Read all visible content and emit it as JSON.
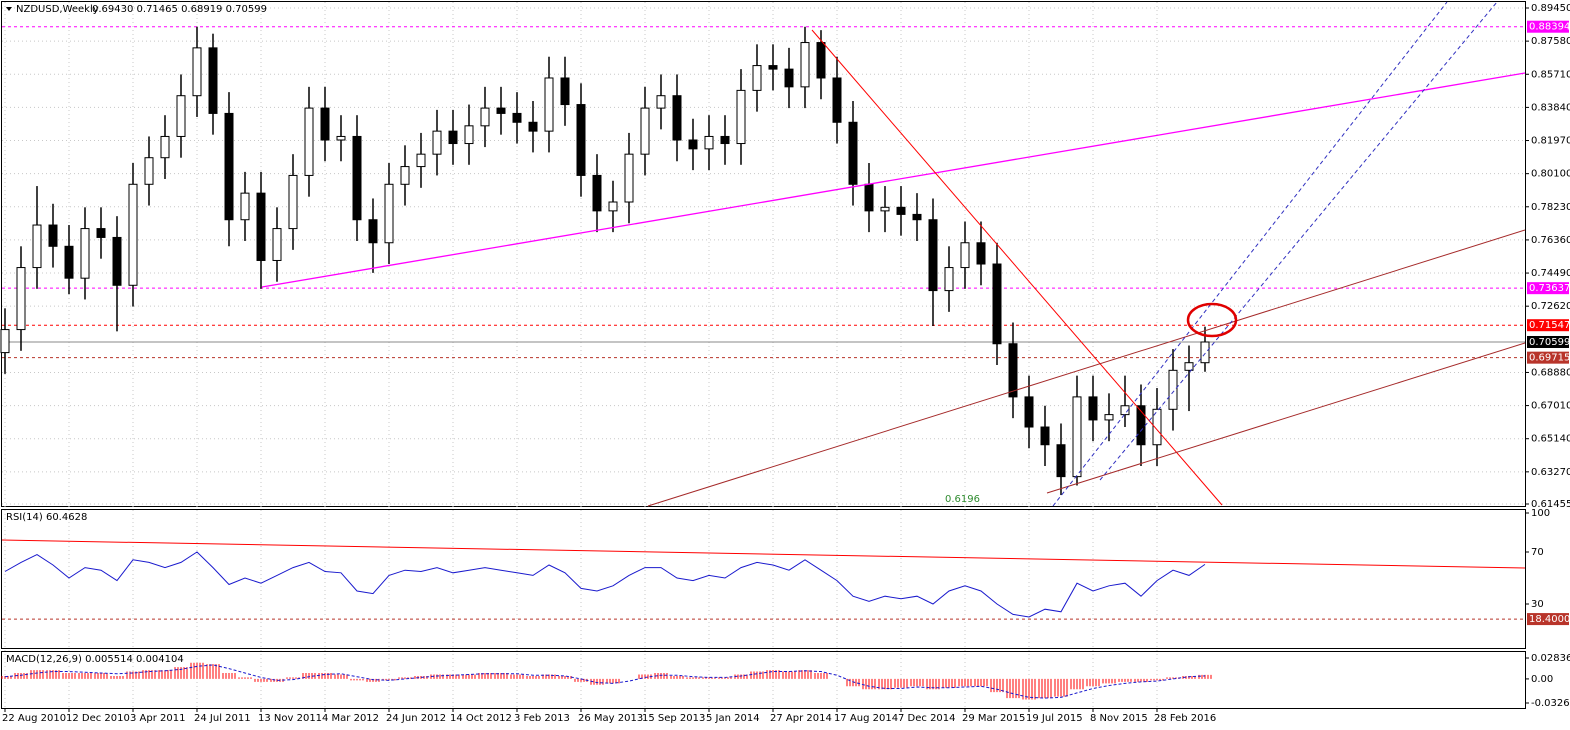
{
  "chart_data": [
    {
      "type": "candlestick",
      "title": "NZDUSD,Weekly",
      "subtitle": "0.69430 0.71465 0.68919 0.70599",
      "open": [
        0.7,
        0.713,
        0.748,
        0.772,
        0.76,
        0.742,
        0.77,
        0.765,
        0.738,
        0.795,
        0.81,
        0.822,
        0.845,
        0.872,
        0.835,
        0.775,
        0.79,
        0.752,
        0.77,
        0.8,
        0.838,
        0.82,
        0.822,
        0.775,
        0.762,
        0.795,
        0.805,
        0.812,
        0.825,
        0.818,
        0.828,
        0.838,
        0.835,
        0.83,
        0.825,
        0.855,
        0.84,
        0.8,
        0.78,
        0.785,
        0.812,
        0.838,
        0.845,
        0.82,
        0.815,
        0.822,
        0.818,
        0.848,
        0.862,
        0.86,
        0.85,
        0.875,
        0.855,
        0.83,
        0.795,
        0.78,
        0.782,
        0.778,
        0.775,
        0.735,
        0.748,
        0.762,
        0.75,
        0.705,
        0.675,
        0.658,
        0.648,
        0.63,
        0.675,
        0.662,
        0.665,
        0.67,
        0.648,
        0.668,
        0.69,
        0.6943
      ],
      "high": [
        0.725,
        0.76,
        0.794,
        0.784,
        0.772,
        0.782,
        0.782,
        0.777,
        0.807,
        0.822,
        0.834,
        0.857,
        0.8839,
        0.88,
        0.847,
        0.802,
        0.802,
        0.782,
        0.812,
        0.85,
        0.85,
        0.834,
        0.834,
        0.787,
        0.807,
        0.817,
        0.824,
        0.837,
        0.837,
        0.84,
        0.85,
        0.85,
        0.847,
        0.842,
        0.867,
        0.867,
        0.852,
        0.812,
        0.797,
        0.824,
        0.85,
        0.857,
        0.857,
        0.832,
        0.834,
        0.834,
        0.86,
        0.874,
        0.874,
        0.872,
        0.8839,
        0.882,
        0.867,
        0.842,
        0.807,
        0.794,
        0.794,
        0.79,
        0.787,
        0.76,
        0.774,
        0.774,
        0.762,
        0.717,
        0.687,
        0.67,
        0.66,
        0.687,
        0.687,
        0.677,
        0.687,
        0.682,
        0.68,
        0.702,
        0.704,
        0.71465
      ],
      "low": [
        0.688,
        0.701,
        0.736,
        0.748,
        0.733,
        0.73,
        0.753,
        0.712,
        0.726,
        0.783,
        0.798,
        0.81,
        0.833,
        0.823,
        0.76,
        0.763,
        0.736,
        0.74,
        0.758,
        0.788,
        0.808,
        0.808,
        0.763,
        0.745,
        0.75,
        0.783,
        0.793,
        0.8,
        0.806,
        0.806,
        0.816,
        0.823,
        0.818,
        0.813,
        0.813,
        0.828,
        0.788,
        0.768,
        0.768,
        0.773,
        0.8,
        0.826,
        0.808,
        0.803,
        0.803,
        0.806,
        0.806,
        0.836,
        0.848,
        0.838,
        0.838,
        0.843,
        0.818,
        0.783,
        0.768,
        0.768,
        0.766,
        0.763,
        0.715,
        0.723,
        0.736,
        0.738,
        0.693,
        0.663,
        0.646,
        0.636,
        0.6196,
        0.625,
        0.65,
        0.65,
        0.658,
        0.636,
        0.636,
        0.656,
        0.667,
        0.68919
      ],
      "close": [
        0.713,
        0.748,
        0.772,
        0.76,
        0.742,
        0.77,
        0.765,
        0.738,
        0.795,
        0.81,
        0.822,
        0.845,
        0.872,
        0.835,
        0.775,
        0.79,
        0.752,
        0.77,
        0.8,
        0.838,
        0.82,
        0.822,
        0.775,
        0.762,
        0.795,
        0.805,
        0.812,
        0.825,
        0.818,
        0.828,
        0.838,
        0.835,
        0.83,
        0.825,
        0.855,
        0.84,
        0.8,
        0.78,
        0.785,
        0.812,
        0.838,
        0.845,
        0.82,
        0.815,
        0.822,
        0.818,
        0.848,
        0.862,
        0.86,
        0.85,
        0.875,
        0.855,
        0.83,
        0.795,
        0.78,
        0.782,
        0.778,
        0.775,
        0.735,
        0.748,
        0.762,
        0.75,
        0.705,
        0.675,
        0.658,
        0.648,
        0.63,
        0.675,
        0.662,
        0.665,
        0.67,
        0.648,
        0.668,
        0.69,
        0.6943,
        0.70599
      ],
      "color": "#000000",
      "ylim": [
        0.61455,
        0.8945
      ],
      "yticks": [
        {
          "value": 0.8945,
          "label": "0.89450"
        },
        {
          "value": 0.8758,
          "label": "0.87580"
        },
        {
          "value": 0.8571,
          "label": "0.85710"
        },
        {
          "value": 0.8384,
          "label": "0.83840"
        },
        {
          "value": 0.8197,
          "label": "0.81970"
        },
        {
          "value": 0.801,
          "label": "0.80100"
        },
        {
          "value": 0.7823,
          "label": "0.78230"
        },
        {
          "value": 0.7636,
          "label": "0.76360"
        },
        {
          "value": 0.7449,
          "label": "0.74490"
        },
        {
          "value": 0.7262,
          "label": "0.72620"
        },
        {
          "value": 0.6888,
          "label": "0.68880"
        },
        {
          "value": 0.6701,
          "label": "0.67010"
        },
        {
          "value": 0.6514,
          "label": "0.65140"
        },
        {
          "value": 0.6327,
          "label": "0.63270"
        },
        {
          "value": 0.61455,
          "label": "0.61455"
        }
      ],
      "levels": [
        {
          "value": 0.88394,
          "label": "0.88394",
          "color": "#ff00ff"
        },
        {
          "value": 0.73637,
          "label": "0.73637",
          "color": "#ff00ff"
        },
        {
          "value": 0.71547,
          "label": "0.71547",
          "color": "#ff0000"
        },
        {
          "value": 0.70599,
          "label": "0.70599",
          "color": "#000000"
        },
        {
          "value": 0.69715,
          "label": "0.69715",
          "color": "#b8342a"
        }
      ],
      "annotation": {
        "value": 0.6196,
        "label": "0.6196",
        "color": "#2e8b2e"
      },
      "xlabels": [
        "22 Aug 2010",
        "12 Dec 2010",
        "3 Apr 2011",
        "24 Jul 2011",
        "13 Nov 2011",
        "4 Mar 2012",
        "24 Jun 2012",
        "14 Oct 2012",
        "3 Feb 2013",
        "26 May 2013",
        "15 Sep 2013",
        "5 Jan 2014",
        "27 Apr 2014",
        "17 Aug 2014",
        "7 Dec 2014",
        "29 Mar 2015",
        "19 Jul 2015",
        "8 Nov 2015",
        "28 Feb 2016"
      ],
      "grid": true
    },
    {
      "type": "line",
      "title": "RSI(14) 60.4628",
      "values": [
        55,
        62,
        68,
        60,
        50,
        58,
        56,
        48,
        64,
        62,
        58,
        62,
        70,
        58,
        45,
        50,
        46,
        52,
        58,
        62,
        55,
        54,
        40,
        38,
        52,
        56,
        55,
        58,
        54,
        56,
        58,
        56,
        54,
        52,
        60,
        54,
        42,
        40,
        44,
        52,
        58,
        58,
        50,
        48,
        52,
        50,
        58,
        62,
        60,
        56,
        64,
        56,
        48,
        36,
        32,
        36,
        34,
        36,
        30,
        40,
        44,
        40,
        30,
        22,
        20,
        26,
        24,
        46,
        40,
        44,
        46,
        36,
        48,
        56,
        52,
        60.4628
      ],
      "color": "#1a1acd",
      "ylim": [
        0,
        100
      ],
      "yticks": [
        100,
        70,
        30
      ],
      "levels": [
        {
          "value": 18.4,
          "label": "18.4000",
          "color": "#b8342a"
        }
      ]
    },
    {
      "type": "macd",
      "title": "MACD(12,26,9) 0.005514 0.004104",
      "values": [
        0.004,
        0.008,
        0.012,
        0.012,
        0.008,
        0.008,
        0.008,
        0.004,
        0.01,
        0.012,
        0.012,
        0.016,
        0.022,
        0.02,
        0.008,
        0.002,
        -0.004,
        -0.004,
        0.002,
        0.008,
        0.008,
        0.006,
        -0.002,
        -0.004,
        -0.002,
        0.002,
        0.004,
        0.006,
        0.006,
        0.006,
        0.008,
        0.008,
        0.006,
        0.004,
        0.006,
        0.004,
        -0.004,
        -0.008,
        -0.006,
        0.0,
        0.006,
        0.008,
        0.004,
        0.002,
        0.002,
        0.002,
        0.006,
        0.01,
        0.012,
        0.01,
        0.012,
        0.008,
        0.0,
        -0.01,
        -0.014,
        -0.014,
        -0.012,
        -0.01,
        -0.014,
        -0.012,
        -0.01,
        -0.01,
        -0.018,
        -0.026,
        -0.028,
        -0.026,
        -0.024,
        -0.014,
        -0.01,
        -0.006,
        -0.004,
        -0.004,
        -0.002,
        0.002,
        0.004,
        0.005514
      ],
      "signal": [
        0.003,
        0.005,
        0.008,
        0.01,
        0.01,
        0.009,
        0.008,
        0.007,
        0.008,
        0.01,
        0.011,
        0.013,
        0.017,
        0.019,
        0.014,
        0.008,
        0.002,
        -0.002,
        -0.001,
        0.003,
        0.006,
        0.007,
        0.003,
        -0.001,
        -0.002,
        0.0,
        0.002,
        0.004,
        0.005,
        0.006,
        0.007,
        0.007,
        0.007,
        0.005,
        0.005,
        0.004,
        0.0,
        -0.005,
        -0.006,
        -0.003,
        0.002,
        0.005,
        0.005,
        0.003,
        0.002,
        0.002,
        0.004,
        0.007,
        0.01,
        0.01,
        0.011,
        0.01,
        0.005,
        -0.004,
        -0.01,
        -0.013,
        -0.013,
        -0.011,
        -0.012,
        -0.012,
        -0.011,
        -0.01,
        -0.014,
        -0.02,
        -0.025,
        -0.026,
        -0.025,
        -0.019,
        -0.013,
        -0.009,
        -0.006,
        -0.004,
        -0.003,
        0.0,
        0.003,
        0.004104
      ],
      "color": "#ff0000",
      "signal_color": "#1a1acd",
      "ylim": [
        -0.032679,
        0.028365
      ],
      "yticks": [
        0.028365,
        {
          "value": 0,
          "label": "0.00"
        },
        -0.032679
      ]
    }
  ]
}
